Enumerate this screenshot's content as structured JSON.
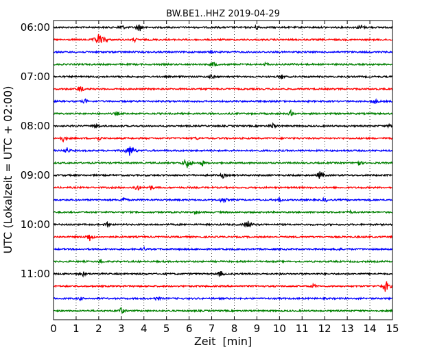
{
  "chart_data": {
    "type": "line",
    "title": "BW.BE1..HHZ 2019-04-29",
    "xlabel": "Zeit  [min]",
    "ylabel": "UTC (Lokalzeit = UTC + 02:00)",
    "xlim": [
      0,
      15
    ],
    "x_ticks": [
      "0",
      "1",
      "2",
      "3",
      "4",
      "5",
      "6",
      "7",
      "8",
      "9",
      "10",
      "11",
      "12",
      "13",
      "14",
      "15"
    ],
    "y_ticks": [
      "06:00",
      "07:00",
      "08:00",
      "09:00",
      "10:00",
      "11:00"
    ],
    "y_tick_rows": [
      0,
      4,
      8,
      12,
      16,
      20
    ],
    "grid": "vertical dotted at each minute",
    "colors": [
      "#000000",
      "#ff0000",
      "#0000ff",
      "#008000"
    ],
    "rows": [
      {
        "time": "06:00",
        "color": "#000000",
        "events": [
          [
            3.0,
            0.5
          ],
          [
            3.8,
            0.7
          ],
          [
            9.0,
            0.4
          ],
          [
            13.6,
            0.5
          ]
        ]
      },
      {
        "time": "06:15",
        "color": "#ff0000",
        "events": [
          [
            2.0,
            1.0
          ],
          [
            2.3,
            0.4
          ],
          [
            3.6,
            0.3
          ]
        ]
      },
      {
        "time": "06:30",
        "color": "#0000ff",
        "events": [
          [
            7.0,
            0.2
          ]
        ]
      },
      {
        "time": "06:45",
        "color": "#008000",
        "events": [
          [
            7.1,
            0.5
          ],
          [
            9.4,
            0.3
          ],
          [
            10.7,
            0.3
          ]
        ]
      },
      {
        "time": "07:00",
        "color": "#000000",
        "events": [
          [
            7.0,
            0.4
          ],
          [
            10.1,
            0.4
          ]
        ]
      },
      {
        "time": "07:15",
        "color": "#ff0000",
        "events": [
          [
            1.2,
            0.6
          ]
        ]
      },
      {
        "time": "07:30",
        "color": "#0000ff",
        "events": [
          [
            1.4,
            0.4
          ],
          [
            14.2,
            0.5
          ]
        ]
      },
      {
        "time": "07:45",
        "color": "#008000",
        "events": [
          [
            2.8,
            0.3
          ],
          [
            10.5,
            0.4
          ]
        ]
      },
      {
        "time": "08:00",
        "color": "#000000",
        "events": [
          [
            1.9,
            0.5
          ],
          [
            9.7,
            0.5
          ],
          [
            14.9,
            0.4
          ]
        ]
      },
      {
        "time": "08:15",
        "color": "#ff0000",
        "events": [
          [
            0.4,
            0.6
          ],
          [
            2.0,
            0.4
          ],
          [
            6.3,
            0.3
          ]
        ]
      },
      {
        "time": "08:30",
        "color": "#0000ff",
        "events": [
          [
            0.6,
            0.5
          ],
          [
            3.4,
            1.0
          ]
        ]
      },
      {
        "time": "08:45",
        "color": "#008000",
        "events": [
          [
            5.9,
            0.9
          ],
          [
            6.6,
            0.5
          ],
          [
            13.5,
            0.5
          ]
        ]
      },
      {
        "time": "09:00",
        "color": "#000000",
        "events": [
          [
            7.5,
            0.4
          ],
          [
            11.8,
            0.7
          ]
        ]
      },
      {
        "time": "09:15",
        "color": "#ff0000",
        "events": [
          [
            3.7,
            0.6
          ],
          [
            4.3,
            0.4
          ]
        ]
      },
      {
        "time": "09:30",
        "color": "#0000ff",
        "events": [
          [
            3.1,
            0.5
          ],
          [
            7.5,
            0.6
          ],
          [
            10.0,
            0.4
          ],
          [
            12.0,
            0.4
          ]
        ]
      },
      {
        "time": "09:45",
        "color": "#008000",
        "events": [
          [
            6.3,
            0.3
          ],
          [
            13.1,
            0.3
          ]
        ]
      },
      {
        "time": "10:00",
        "color": "#000000",
        "events": [
          [
            2.4,
            0.4
          ],
          [
            8.6,
            0.7
          ]
        ]
      },
      {
        "time": "10:15",
        "color": "#ff0000",
        "events": [
          [
            1.6,
            0.7
          ]
        ]
      },
      {
        "time": "10:30",
        "color": "#0000ff",
        "events": [
          [
            4.0,
            0.3
          ],
          [
            12.6,
            0.3
          ]
        ]
      },
      {
        "time": "10:45",
        "color": "#008000",
        "events": [
          [
            2.1,
            0.4
          ]
        ]
      },
      {
        "time": "11:00",
        "color": "#000000",
        "events": [
          [
            1.3,
            0.4
          ],
          [
            7.4,
            0.5
          ]
        ]
      },
      {
        "time": "11:15",
        "color": "#ff0000",
        "events": [
          [
            11.5,
            0.4
          ],
          [
            14.7,
            1.0
          ]
        ]
      },
      {
        "time": "11:30",
        "color": "#0000ff",
        "events": [
          [
            1.2,
            0.3
          ],
          [
            4.6,
            0.4
          ]
        ]
      },
      {
        "time": "11:45",
        "color": "#008000",
        "events": [
          [
            3.0,
            0.6
          ]
        ]
      }
    ]
  }
}
